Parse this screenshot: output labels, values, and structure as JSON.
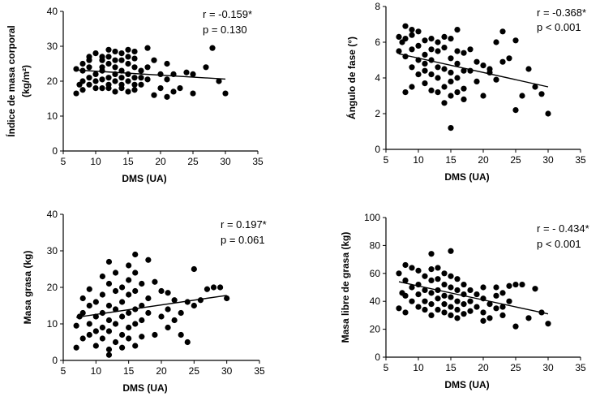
{
  "chart_data": [
    {
      "type": "scatter",
      "xlabel": "DMS (UA)",
      "ylabel_lines": [
        "Índice de masa corporal",
        "(kg/m²)"
      ],
      "xlim": [
        5,
        35
      ],
      "ylim": [
        0,
        40
      ],
      "xticks": [
        5,
        10,
        15,
        20,
        25,
        30,
        35
      ],
      "yticks": [
        0,
        10,
        20,
        30,
        40
      ],
      "annotations": [
        "r = -0.159*",
        "p = 0.130"
      ],
      "trendline": [
        [
          7,
          23.2
        ],
        [
          30,
          20.6
        ]
      ],
      "points": [
        [
          7,
          16.5
        ],
        [
          7,
          23.5
        ],
        [
          7.5,
          19
        ],
        [
          8,
          23
        ],
        [
          8,
          25
        ],
        [
          8,
          20
        ],
        [
          8,
          17.5
        ],
        [
          9,
          26
        ],
        [
          9,
          24
        ],
        [
          9,
          21
        ],
        [
          9,
          19
        ],
        [
          9,
          27
        ],
        [
          10,
          28
        ],
        [
          10,
          22
        ],
        [
          10,
          18
        ],
        [
          10,
          20
        ],
        [
          11,
          27
        ],
        [
          11,
          24
        ],
        [
          11,
          20.5
        ],
        [
          11,
          23
        ],
        [
          11,
          18
        ],
        [
          11,
          26
        ],
        [
          12,
          29
        ],
        [
          12,
          25
        ],
        [
          12,
          21
        ],
        [
          12,
          18
        ],
        [
          12,
          27
        ],
        [
          12,
          19
        ],
        [
          13,
          28.5
        ],
        [
          13,
          24
        ],
        [
          13,
          20
        ],
        [
          13,
          22
        ],
        [
          13,
          17
        ],
        [
          13,
          26
        ],
        [
          14,
          28
        ],
        [
          14,
          23
        ],
        [
          14,
          19
        ],
        [
          14,
          26
        ],
        [
          14,
          21
        ],
        [
          14,
          18
        ],
        [
          15,
          29
        ],
        [
          15,
          25
        ],
        [
          15,
          22
        ],
        [
          15,
          20
        ],
        [
          15,
          17
        ],
        [
          15,
          27
        ],
        [
          16,
          28.5
        ],
        [
          16,
          24
        ],
        [
          16,
          21
        ],
        [
          16,
          19
        ],
        [
          16,
          17.5
        ],
        [
          16,
          26.5
        ],
        [
          17,
          21
        ],
        [
          17,
          19
        ],
        [
          17,
          23
        ],
        [
          18,
          29.5
        ],
        [
          18,
          24
        ],
        [
          18,
          20.5
        ],
        [
          19,
          26
        ],
        [
          19,
          16
        ],
        [
          20,
          22
        ],
        [
          20,
          18
        ],
        [
          21,
          25
        ],
        [
          21,
          15.5
        ],
        [
          21,
          20.5
        ],
        [
          22,
          22
        ],
        [
          22,
          17
        ],
        [
          23,
          18
        ],
        [
          24,
          22.5
        ],
        [
          25,
          16.5
        ],
        [
          25,
          22
        ],
        [
          27,
          24
        ],
        [
          28,
          29.5
        ],
        [
          29,
          20
        ],
        [
          30,
          16.5
        ]
      ]
    },
    {
      "type": "scatter",
      "xlabel": "DMS (UA)",
      "ylabel_lines": [
        "Ángulo de fase (°)"
      ],
      "xlim": [
        5,
        35
      ],
      "ylim": [
        0,
        8
      ],
      "xticks": [
        5,
        10,
        15,
        20,
        25,
        30,
        35
      ],
      "yticks": [
        0,
        2,
        4,
        6,
        8
      ],
      "annotations": [
        "r = -0.368*",
        "p < 0.001"
      ],
      "trendline": [
        [
          7,
          5.35
        ],
        [
          30,
          3.5
        ]
      ],
      "points": [
        [
          7,
          6.3
        ],
        [
          7,
          5.5
        ],
        [
          7.5,
          6
        ],
        [
          8,
          6.9
        ],
        [
          8,
          6.2
        ],
        [
          8,
          5.2
        ],
        [
          8,
          3.2
        ],
        [
          9,
          6.4
        ],
        [
          9,
          5.6
        ],
        [
          9,
          4.6
        ],
        [
          9,
          3.5
        ],
        [
          9,
          6.7
        ],
        [
          10,
          6.6
        ],
        [
          10,
          5.8
        ],
        [
          10,
          5
        ],
        [
          10,
          4.2
        ],
        [
          11,
          6.1
        ],
        [
          11,
          5.3
        ],
        [
          11,
          4.8
        ],
        [
          11,
          3.7
        ],
        [
          11,
          4.4
        ],
        [
          12,
          6.2
        ],
        [
          12,
          5.6
        ],
        [
          12,
          5
        ],
        [
          12,
          4.2
        ],
        [
          12,
          3.3
        ],
        [
          13,
          6
        ],
        [
          13,
          5.5
        ],
        [
          13,
          4.6
        ],
        [
          13,
          4
        ],
        [
          13,
          3.2
        ],
        [
          14,
          6.3
        ],
        [
          14,
          5.7
        ],
        [
          14,
          4.5
        ],
        [
          14,
          3.5
        ],
        [
          14,
          2.6
        ],
        [
          15,
          6.2
        ],
        [
          15,
          5.1
        ],
        [
          15,
          4.3
        ],
        [
          15,
          3.8
        ],
        [
          15,
          3
        ],
        [
          15,
          1.2
        ],
        [
          16,
          6.7
        ],
        [
          16,
          5.5
        ],
        [
          16,
          4.8
        ],
        [
          16,
          4
        ],
        [
          16,
          3.2
        ],
        [
          17,
          5.4
        ],
        [
          17,
          4.4
        ],
        [
          17,
          3.4
        ],
        [
          17,
          2.8
        ],
        [
          18,
          5.6
        ],
        [
          18,
          4.4
        ],
        [
          19,
          4.9
        ],
        [
          19,
          3.8
        ],
        [
          20,
          4.7
        ],
        [
          20,
          3
        ],
        [
          21,
          4.3
        ],
        [
          21,
          4.5
        ],
        [
          22,
          6
        ],
        [
          22,
          3.9
        ],
        [
          23,
          6.6
        ],
        [
          23,
          4.9
        ],
        [
          24,
          5.1
        ],
        [
          25,
          6.1
        ],
        [
          25,
          2.2
        ],
        [
          26,
          3
        ],
        [
          27,
          4.5
        ],
        [
          28,
          3.5
        ],
        [
          29,
          3.1
        ],
        [
          30,
          2
        ]
      ]
    },
    {
      "type": "scatter",
      "xlabel": "DMS (UA)",
      "ylabel_lines": [
        "Masa grasa (kg)"
      ],
      "xlim": [
        5,
        35
      ],
      "ylim": [
        0,
        40
      ],
      "xticks": [
        5,
        10,
        15,
        20,
        25,
        30,
        35
      ],
      "yticks": [
        0,
        10,
        20,
        30,
        40
      ],
      "annotations": [
        "r = 0.197*",
        "p = 0.061"
      ],
      "trendline": [
        [
          7,
          11.8
        ],
        [
          30,
          17.8
        ]
      ],
      "points": [
        [
          7,
          3.5
        ],
        [
          7,
          9.5
        ],
        [
          7.5,
          12
        ],
        [
          8,
          17
        ],
        [
          8,
          6
        ],
        [
          8,
          13
        ],
        [
          9,
          19.5
        ],
        [
          9,
          10
        ],
        [
          9,
          7
        ],
        [
          9,
          15
        ],
        [
          10,
          16
        ],
        [
          10,
          8
        ],
        [
          10,
          12
        ],
        [
          10,
          4
        ],
        [
          11,
          23
        ],
        [
          11,
          18
        ],
        [
          11,
          13
        ],
        [
          11,
          9
        ],
        [
          11,
          6
        ],
        [
          12,
          27
        ],
        [
          12,
          21
        ],
        [
          12,
          15
        ],
        [
          12,
          11
        ],
        [
          12,
          8
        ],
        [
          12,
          3
        ],
        [
          12,
          1.5
        ],
        [
          13,
          24
        ],
        [
          13,
          19
        ],
        [
          13,
          14
        ],
        [
          13,
          10
        ],
        [
          13,
          5
        ],
        [
          14,
          20
        ],
        [
          14,
          16
        ],
        [
          14,
          12
        ],
        [
          14,
          7
        ],
        [
          14,
          3.5
        ],
        [
          15,
          26
        ],
        [
          15,
          22
        ],
        [
          15,
          18
        ],
        [
          15,
          13
        ],
        [
          15,
          9
        ],
        [
          15,
          6
        ],
        [
          16,
          29
        ],
        [
          16,
          24
        ],
        [
          16,
          19
        ],
        [
          16,
          14
        ],
        [
          16,
          10
        ],
        [
          16,
          4
        ],
        [
          17,
          21
        ],
        [
          17,
          15
        ],
        [
          17,
          11
        ],
        [
          17,
          6.5
        ],
        [
          18,
          27.5
        ],
        [
          18,
          17
        ],
        [
          18,
          13
        ],
        [
          19,
          21.5
        ],
        [
          19,
          7
        ],
        [
          20,
          19
        ],
        [
          20,
          12
        ],
        [
          21,
          18.5
        ],
        [
          21,
          14
        ],
        [
          21,
          9
        ],
        [
          22,
          16.5
        ],
        [
          22,
          11
        ],
        [
          23,
          13
        ],
        [
          23,
          7
        ],
        [
          24,
          16
        ],
        [
          24,
          5
        ],
        [
          25,
          25
        ],
        [
          25,
          15
        ],
        [
          26,
          16.5
        ],
        [
          27,
          19.5
        ],
        [
          28,
          20
        ],
        [
          29,
          20
        ],
        [
          30,
          17
        ]
      ]
    },
    {
      "type": "scatter",
      "xlabel": "DMS (UA)",
      "ylabel_lines": [
        "Masa libre de grasa (kg)"
      ],
      "xlim": [
        5,
        35
      ],
      "ylim": [
        0,
        100
      ],
      "xticks": [
        5,
        10,
        15,
        20,
        25,
        30,
        35
      ],
      "yticks": [
        0,
        20,
        40,
        60,
        80,
        100
      ],
      "annotations": [
        "r = - 0.434*",
        "p < 0.001"
      ],
      "trendline": [
        [
          7,
          54
        ],
        [
          30,
          31
        ]
      ],
      "points": [
        [
          7,
          60
        ],
        [
          7,
          35
        ],
        [
          7.5,
          46
        ],
        [
          8,
          66
        ],
        [
          8,
          55
        ],
        [
          8,
          44
        ],
        [
          8,
          32
        ],
        [
          9,
          64
        ],
        [
          9,
          50
        ],
        [
          9,
          40
        ],
        [
          10,
          62
        ],
        [
          10,
          52
        ],
        [
          10,
          45
        ],
        [
          10,
          36
        ],
        [
          11,
          58
        ],
        [
          11,
          48
        ],
        [
          11,
          40
        ],
        [
          11,
          34
        ],
        [
          12,
          74
        ],
        [
          12,
          63
        ],
        [
          12,
          55
        ],
        [
          12,
          46
        ],
        [
          12,
          38
        ],
        [
          12,
          30
        ],
        [
          13,
          64
        ],
        [
          13,
          56
        ],
        [
          13,
          48
        ],
        [
          13,
          42
        ],
        [
          13,
          34
        ],
        [
          14,
          60
        ],
        [
          14,
          52
        ],
        [
          14,
          44
        ],
        [
          14,
          38
        ],
        [
          14,
          32
        ],
        [
          15,
          76
        ],
        [
          15,
          58
        ],
        [
          15,
          50
        ],
        [
          15,
          43
        ],
        [
          15,
          36
        ],
        [
          15,
          30
        ],
        [
          16,
          56
        ],
        [
          16,
          48
        ],
        [
          16,
          40
        ],
        [
          16,
          34
        ],
        [
          16,
          28
        ],
        [
          17,
          52
        ],
        [
          17,
          45
        ],
        [
          17,
          38
        ],
        [
          17,
          31
        ],
        [
          18,
          48
        ],
        [
          18,
          40
        ],
        [
          18,
          33
        ],
        [
          19,
          45
        ],
        [
          19,
          36
        ],
        [
          20,
          50
        ],
        [
          20,
          42
        ],
        [
          20,
          32
        ],
        [
          20,
          26
        ],
        [
          21,
          38
        ],
        [
          21,
          28
        ],
        [
          22,
          50
        ],
        [
          22,
          44
        ],
        [
          22,
          35
        ],
        [
          23,
          46
        ],
        [
          23,
          36
        ],
        [
          23,
          30
        ],
        [
          24,
          51
        ],
        [
          24,
          40
        ],
        [
          25,
          22
        ],
        [
          25,
          52
        ],
        [
          26,
          52
        ],
        [
          27,
          28
        ],
        [
          28,
          49
        ],
        [
          29,
          32
        ],
        [
          30,
          24
        ]
      ]
    }
  ]
}
